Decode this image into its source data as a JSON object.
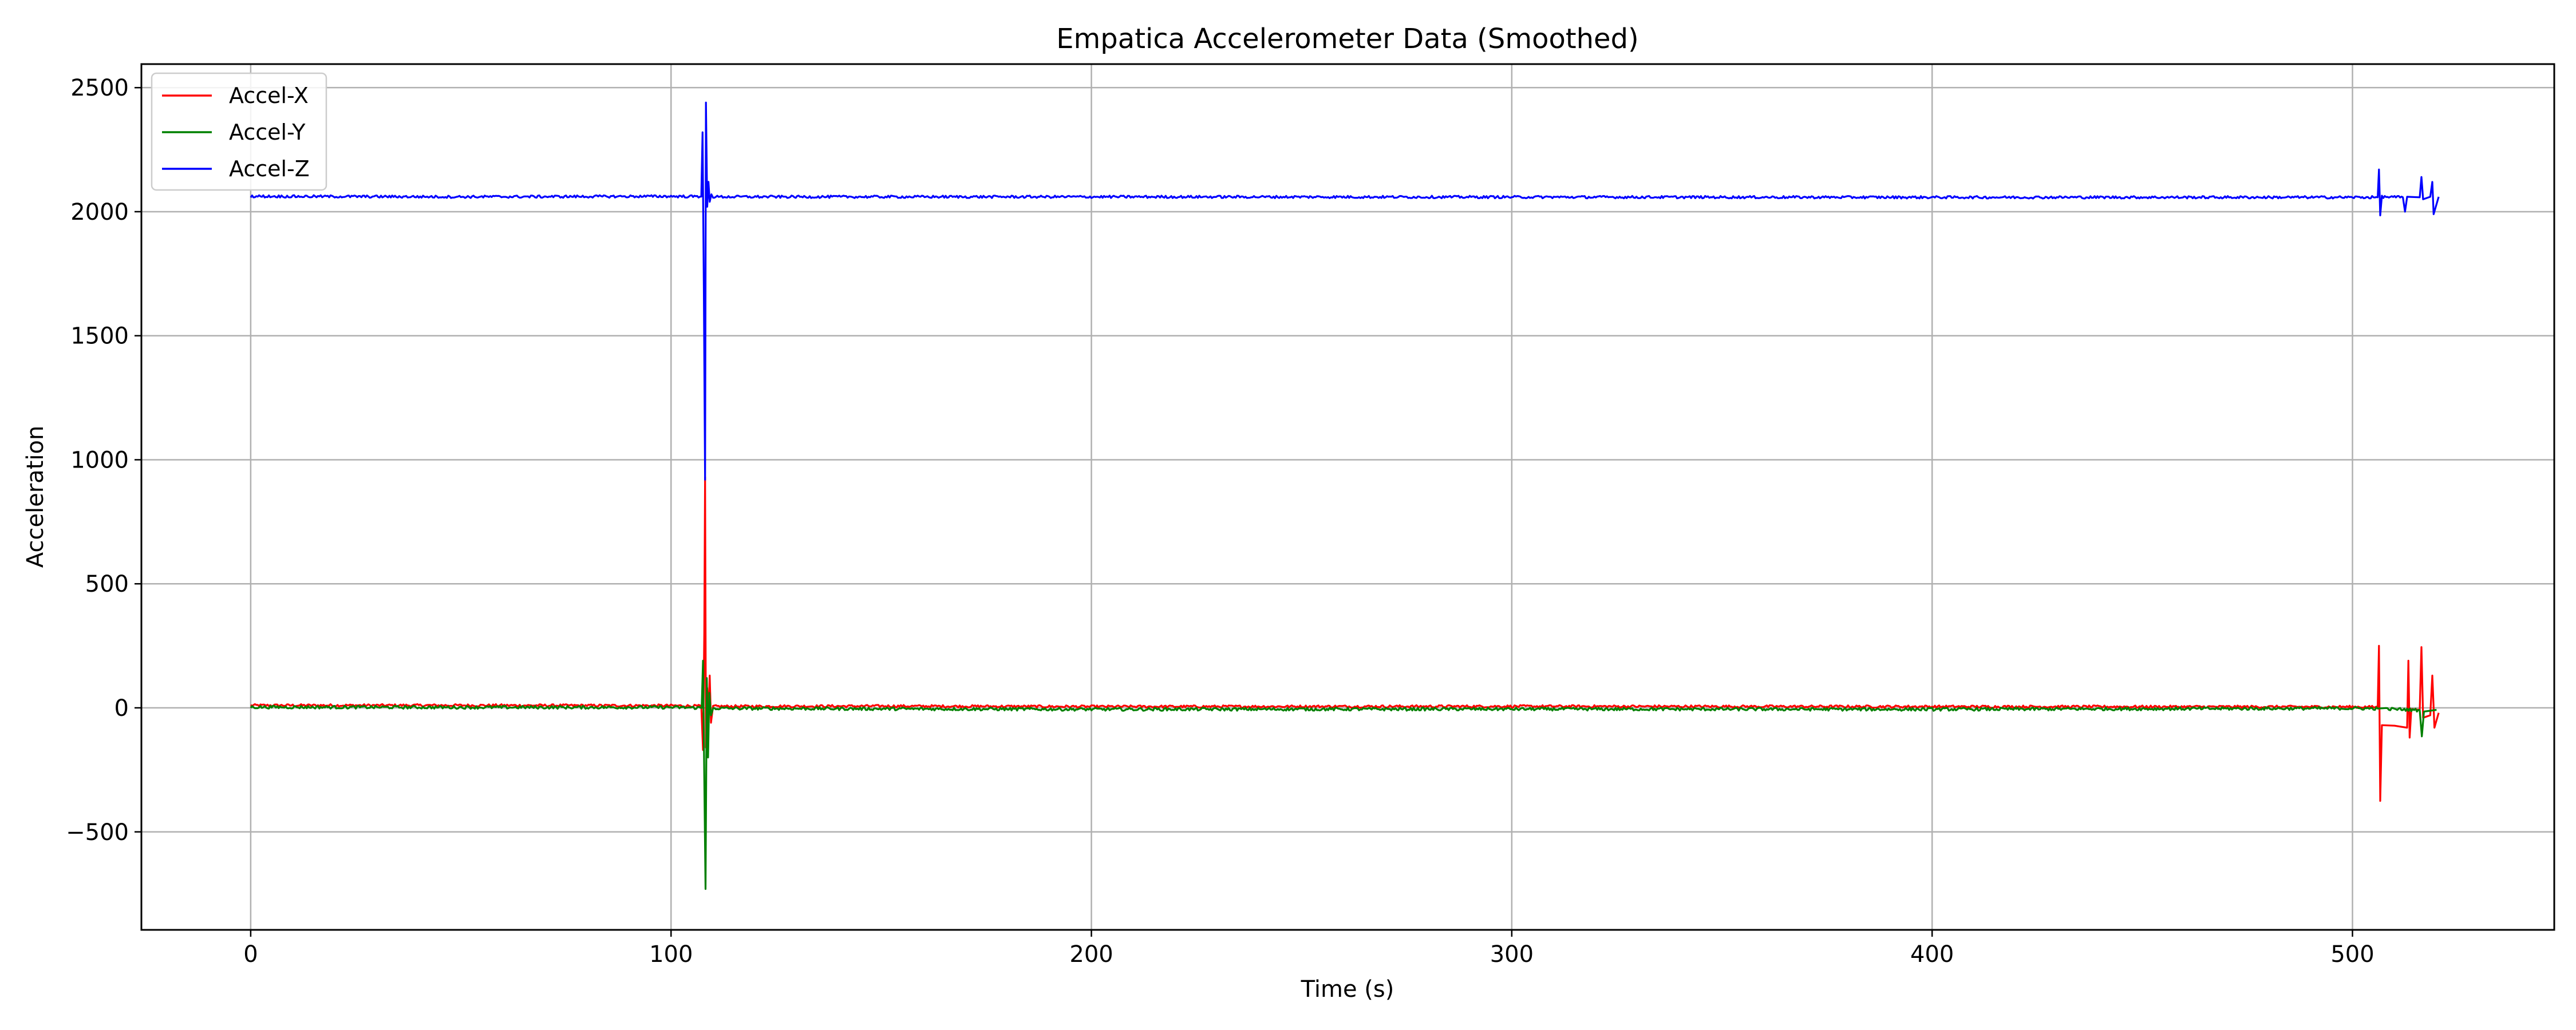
{
  "chart_data": {
    "type": "line",
    "title": "Empatica Accelerometer Data (Smoothed)",
    "xlabel": "Time (s)",
    "ylabel": "Acceleration",
    "xlim": [
      -26,
      548
    ],
    "ylim": [
      -895,
      2595
    ],
    "x_ticks": [
      0,
      100,
      200,
      300,
      400,
      500
    ],
    "y_ticks": [
      -500,
      0,
      500,
      1000,
      1500,
      2000,
      2500
    ],
    "x_tick_labels": [
      "0",
      "100",
      "200",
      "300",
      "400",
      "500"
    ],
    "y_tick_labels": [
      "−500",
      "0",
      "500",
      "1000",
      "1500",
      "2000",
      "2500"
    ],
    "grid": true,
    "legend_position": "top-left",
    "series": [
      {
        "name": "Accel-X",
        "color": "#ff0000",
        "baseline": 8,
        "noise": 5,
        "points": [
          [
            0,
            10
          ],
          [
            50,
            10
          ],
          [
            100,
            9
          ],
          [
            107.2,
            7
          ],
          [
            107.6,
            -170
          ],
          [
            107.9,
            300
          ],
          [
            108.1,
            930
          ],
          [
            108.3,
            -160
          ],
          [
            108.6,
            80
          ],
          [
            108.9,
            -30
          ],
          [
            109.2,
            130
          ],
          [
            109.5,
            -60
          ],
          [
            110,
            6
          ],
          [
            150,
            7
          ],
          [
            200,
            5
          ],
          [
            300,
            6
          ],
          [
            400,
            5
          ],
          [
            500,
            4
          ],
          [
            506,
            3
          ],
          [
            506.3,
            250
          ],
          [
            506.6,
            -375
          ],
          [
            507,
            -70
          ],
          [
            510,
            -72
          ],
          [
            513,
            -80
          ],
          [
            513.3,
            190
          ],
          [
            513.6,
            -120
          ],
          [
            514,
            -5
          ],
          [
            516,
            -8
          ],
          [
            516.4,
            245
          ],
          [
            516.8,
            -40
          ],
          [
            518.5,
            -30
          ],
          [
            519,
            130
          ],
          [
            519.5,
            -80
          ],
          [
            520.5,
            -20
          ]
        ]
      },
      {
        "name": "Accel-Y",
        "color": "#008000",
        "baseline": 0,
        "noise": 6,
        "points": [
          [
            0,
            3
          ],
          [
            50,
            2
          ],
          [
            100,
            2
          ],
          [
            107.3,
            0
          ],
          [
            107.6,
            190
          ],
          [
            107.9,
            -280
          ],
          [
            108.2,
            -730
          ],
          [
            108.5,
            120
          ],
          [
            108.8,
            -200
          ],
          [
            109.1,
            60
          ],
          [
            109.5,
            -30
          ],
          [
            110,
            -2
          ],
          [
            150,
            -4
          ],
          [
            200,
            -6
          ],
          [
            300,
            -5
          ],
          [
            400,
            -6
          ],
          [
            500,
            -2
          ],
          [
            506,
            -3
          ],
          [
            508,
            -5
          ],
          [
            512,
            -6
          ],
          [
            516,
            -10
          ],
          [
            516.5,
            -115
          ],
          [
            517,
            -15
          ],
          [
            520,
            -8
          ]
        ]
      },
      {
        "name": "Accel-Z",
        "color": "#0000ff",
        "baseline": 2060,
        "noise": 5,
        "points": [
          [
            0,
            2062
          ],
          [
            50,
            2060
          ],
          [
            100,
            2062
          ],
          [
            107.2,
            2061
          ],
          [
            107.5,
            2320
          ],
          [
            107.8,
            1700
          ],
          [
            108.1,
            920
          ],
          [
            108.3,
            2440
          ],
          [
            108.6,
            2020
          ],
          [
            108.9,
            2120
          ],
          [
            109.2,
            2040
          ],
          [
            109.6,
            2070
          ],
          [
            110,
            2060
          ],
          [
            200,
            2060
          ],
          [
            300,
            2059
          ],
          [
            400,
            2058
          ],
          [
            500,
            2058
          ],
          [
            506,
            2058
          ],
          [
            506.3,
            2170
          ],
          [
            506.6,
            1985
          ],
          [
            507,
            2060
          ],
          [
            512,
            2058
          ],
          [
            512.5,
            2000
          ],
          [
            513,
            2060
          ],
          [
            516,
            2058
          ],
          [
            516.4,
            2140
          ],
          [
            516.8,
            2050
          ],
          [
            518.5,
            2060
          ],
          [
            519,
            2120
          ],
          [
            519.3,
            1990
          ],
          [
            520.5,
            2060
          ]
        ]
      }
    ]
  }
}
